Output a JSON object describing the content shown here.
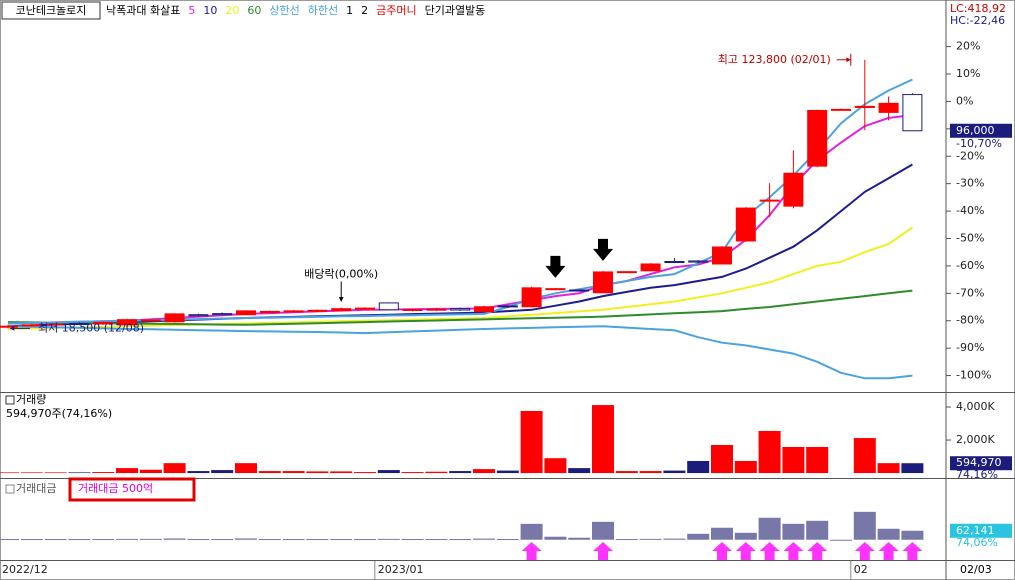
{
  "header": {
    "stock": "코난테크놀로지",
    "lc": "LC:418,92",
    "hc": "HC:-22,46"
  },
  "chart_data": [
    {
      "type": "candlestick",
      "categories": [
        "2022/12",
        null,
        null,
        null,
        null,
        null,
        null,
        null,
        null,
        null,
        null,
        null,
        null,
        null,
        null,
        null,
        "2023/01",
        null,
        null,
        null,
        null,
        null,
        null,
        null,
        null,
        null,
        null,
        null,
        null,
        null,
        null,
        null,
        null,
        null,
        null,
        null,
        "02",
        null,
        null
      ],
      "date_label": "02/03",
      "open": [
        -82.3,
        -81.8,
        -81.5,
        -81.0,
        -81.2,
        -81.5,
        -80.0,
        -80.4,
        -77.8,
        -77.4,
        -77.8,
        -77.0,
        -76.7,
        -76.5,
        -76.3,
        -75.8,
        -73.5,
        -76.2,
        -76.0,
        -75.6,
        -76.7,
        -74.6,
        -74.9,
        -68.5,
        -68.8,
        -69.8,
        -62.3,
        -61.8,
        -58.4,
        -58.2,
        -59.3,
        -50.9,
        -36.2,
        -38.2,
        -23.6,
        -3.1,
        -2.2,
        -4.0,
        2.5
      ],
      "high": [
        -81.5,
        -81.2,
        -80.9,
        -80.6,
        -80.3,
        -79.3,
        -79.3,
        -77.3,
        -77.4,
        -77.0,
        -76.2,
        -76.3,
        -76.1,
        -75.9,
        -75.2,
        -75.1,
        -73.3,
        -75.6,
        -75.5,
        -75.2,
        -74.6,
        -74.3,
        -67.6,
        -68.0,
        -68.6,
        -61.8,
        -61.9,
        -59.0,
        -57.1,
        -57.9,
        -52.8,
        -38.6,
        -29.8,
        -17.8,
        -3.0,
        -2.6,
        15.2,
        1.8,
        3.0
      ],
      "low": [
        -82.8,
        -82.2,
        -81.9,
        -81.6,
        -81.5,
        -81.8,
        -80.3,
        -80.7,
        -78.5,
        -78.1,
        -78.0,
        -77.3,
        -77.1,
        -76.8,
        -76.5,
        -76.0,
        -76.2,
        -76.6,
        -76.5,
        -76.4,
        -77.0,
        -75.3,
        -75.1,
        -68.9,
        -69.4,
        -70.0,
        -62.6,
        -62.0,
        -59.0,
        -59.0,
        -59.5,
        -51.2,
        -42.2,
        -39.0,
        -24.0,
        -3.3,
        -10.5,
        -6.9,
        -10.7
      ],
      "close": [
        -82.0,
        -81.5,
        -81.2,
        -81.3,
        -80.6,
        -79.6,
        -79.7,
        -77.5,
        -78.2,
        -77.8,
        -76.4,
        -76.6,
        -76.4,
        -76.2,
        -75.6,
        -75.4,
        -76.0,
        -75.9,
        -75.8,
        -76.1,
        -74.9,
        -74.9,
        -68.0,
        -68.3,
        -69.1,
        -62.2,
        -62.1,
        -59.3,
        -58.5,
        -58.6,
        -53.1,
        -38.9,
        -36.0,
        -26.2,
        -3.3,
        -2.9,
        -1.8,
        -0.7,
        -10.7
      ],
      "up_color": "#ff0000",
      "down_color": "#ffffff",
      "down_stroke": "#1c1c7c",
      "series": [
        {
          "name": "5",
          "color": "#e020e0",
          "values": [
            -81,
            -80.8,
            -80.6,
            -80.4,
            -80.2,
            -80,
            -79.5,
            -79,
            -78.5,
            -78,
            -77.5,
            -77.2,
            -76.9,
            -76.6,
            -76.3,
            -76,
            -75.9,
            -75.8,
            -75.7,
            -75.6,
            -75.5,
            -74,
            -72.5,
            -71,
            -70,
            -67,
            -65.5,
            -63,
            -60.5,
            -59.5,
            -57,
            -50.5,
            -41.5,
            -30.5,
            -21.5,
            -15,
            -9,
            -6,
            -5
          ]
        },
        {
          "name": "10",
          "color": "#1c1c8c",
          "values": [
            -82,
            -81.7,
            -81.4,
            -81.1,
            -80.8,
            -80.5,
            -80.2,
            -79.9,
            -79.6,
            -79.3,
            -79,
            -78.8,
            -78.6,
            -78.4,
            -78.2,
            -78,
            -77.8,
            -77.6,
            -77.4,
            -77.2,
            -77,
            -76.5,
            -76,
            -74.5,
            -73,
            -71,
            -69.5,
            -68,
            -67,
            -65.5,
            -64,
            -61,
            -57,
            -53,
            -47,
            -40,
            -33,
            -28,
            -23
          ]
        },
        {
          "name": "20",
          "color": "#f0f020",
          "values": [
            -83,
            -82.8,
            -82.6,
            -82.4,
            -82.2,
            -82,
            -81.8,
            -81.6,
            -81.4,
            -81.2,
            -81,
            -80.8,
            -80.6,
            -80.4,
            -80.2,
            -80,
            -79.8,
            -79.6,
            -79.4,
            -79.2,
            -79,
            -78.4,
            -77.8,
            -77.2,
            -76.6,
            -76,
            -75,
            -74,
            -73,
            -71.5,
            -70,
            -68,
            -66,
            -63,
            -60,
            -58.5,
            -55,
            -52,
            -46
          ]
        },
        {
          "name": "60",
          "color": "#2e8b2e",
          "values": [
            -80.5,
            -80.6,
            -80.7,
            -80.8,
            -80.9,
            -81,
            -81.1,
            -81.2,
            -81.3,
            -81.4,
            -81.5,
            -81.3,
            -81.1,
            -80.9,
            -80.7,
            -80.5,
            -80.3,
            -80.1,
            -79.9,
            -79.7,
            -79.5,
            -79.3,
            -79.1,
            -78.9,
            -78.7,
            -78.5,
            -78.1,
            -77.7,
            -77.3,
            -76.9,
            -76.5,
            -75.7,
            -75,
            -74,
            -73,
            -72,
            -71,
            -70,
            -69
          ]
        },
        {
          "name": "상한선",
          "color": "#4aa3df",
          "values": [
            -81,
            -80.8,
            -80.6,
            -80.4,
            -80.2,
            -80,
            -79.8,
            -79.6,
            -79.4,
            -79.2,
            -79,
            -78.9,
            -78.7,
            -78.6,
            -78.4,
            -78.3,
            -78.1,
            -78,
            -77.8,
            -77.7,
            -77.5,
            -75,
            -72,
            -70,
            -68.5,
            -67,
            -65.5,
            -64,
            -63,
            -59,
            -55,
            -42,
            -35,
            -27,
            -18,
            -8,
            -1,
            4,
            8
          ]
        },
        {
          "name": "하한선",
          "color": "#4aa3df",
          "values": [
            -82,
            -82.2,
            -82.4,
            -82.6,
            -82.8,
            -83,
            -83.1,
            -83.3,
            -83.5,
            -83.6,
            -83.8,
            -83.9,
            -84,
            -84.1,
            -84.3,
            -84.5,
            -84.2,
            -83.9,
            -83.6,
            -83.3,
            -83,
            -82.8,
            -82.6,
            -82.4,
            -82.2,
            -82,
            -82.5,
            -83,
            -83.5,
            -86,
            -88,
            -89,
            -90.5,
            -92,
            -95,
            -99,
            -101,
            -101,
            -100
          ]
        }
      ],
      "legend_before": [
        {
          "text": "낙폭과대 화살표",
          "color": "#000000"
        }
      ],
      "legend_after": [
        {
          "text": "1",
          "color": "#000000"
        },
        {
          "text": "2",
          "color": "#000000"
        },
        {
          "text": "금주머니",
          "color": "#e00000"
        },
        {
          "text": "단기과열발동",
          "color": "#000000"
        }
      ],
      "annotations": [
        {
          "text": "최고 123,800 (02/01)",
          "index": 36,
          "at": "high",
          "side": "left",
          "color": "#c00000"
        },
        {
          "text": "최저 18,500 (12/08)",
          "index": 0,
          "at": "low",
          "side": "right",
          "color": "#1c1c8c"
        },
        {
          "text": "배당락(0,00%)",
          "index": 14,
          "at": "high",
          "side": "top",
          "color": "#000000"
        }
      ],
      "down_arrows": [
        23,
        25
      ],
      "ylim": [
        -106,
        37
      ],
      "yticks": [
        {
          "value": 20,
          "label": "20%"
        },
        {
          "value": 10,
          "label": "10%"
        },
        {
          "value": 0,
          "label": "0%"
        },
        {
          "value": -10,
          "label": "-10%"
        },
        {
          "value": -20,
          "label": "-20%"
        },
        {
          "value": -30,
          "label": "-30%"
        },
        {
          "value": -40,
          "label": "-40%"
        },
        {
          "value": -50,
          "label": "-50%"
        },
        {
          "value": -60,
          "label": "-60%"
        },
        {
          "value": -70,
          "label": "-70%"
        },
        {
          "value": -80,
          "label": "-80%"
        },
        {
          "value": -90,
          "label": "-90%"
        },
        {
          "value": -100,
          "label": "-100%"
        }
      ],
      "current_label": "96,000",
      "current_pct": "-10,70%"
    },
    {
      "type": "bar",
      "title": "거래량",
      "subtitle": "594,970주(74,16%)",
      "values": [
        40,
        40,
        40,
        40,
        60,
        300,
        200,
        600,
        120,
        180,
        600,
        120,
        120,
        100,
        100,
        60,
        180,
        60,
        80,
        120,
        240,
        150,
        3760,
        900,
        300,
        4120,
        120,
        120,
        150,
        730,
        1700,
        730,
        2550,
        1580,
        1580,
        0,
        2120,
        600,
        595
      ],
      "up_color": "#ff0000",
      "down_color": "#1c1c7c",
      "ylim": [
        -300,
        4850
      ],
      "yticks": [
        {
          "value": 4000,
          "label": "4,000K"
        },
        {
          "value": 2000,
          "label": "2,000K"
        }
      ],
      "last_label": "594,970",
      "last_pct": "74,16%"
    },
    {
      "type": "bar",
      "title": "거래대금",
      "legend_box": "거래대금 500억",
      "color": "#7878a8",
      "values": [
        5000,
        5000,
        5000,
        5000,
        5000,
        6000,
        6000,
        9000,
        5000,
        5000,
        9000,
        5000,
        5000,
        5000,
        5000,
        5000,
        6000,
        5000,
        5000,
        5000,
        8000,
        5000,
        110000,
        21000,
        14000,
        124000,
        5000,
        6000,
        8000,
        41000,
        83000,
        48000,
        152000,
        110000,
        131000,
        0,
        193000,
        76000,
        62141
      ],
      "ylim": [
        -140000,
        420000
      ],
      "last_label": "62,141",
      "last_pct": "74,06%",
      "arrows": [
        22,
        25,
        30,
        31,
        32,
        33,
        34,
        36,
        37,
        38
      ],
      "arrow_color": "#ff33ff"
    }
  ]
}
